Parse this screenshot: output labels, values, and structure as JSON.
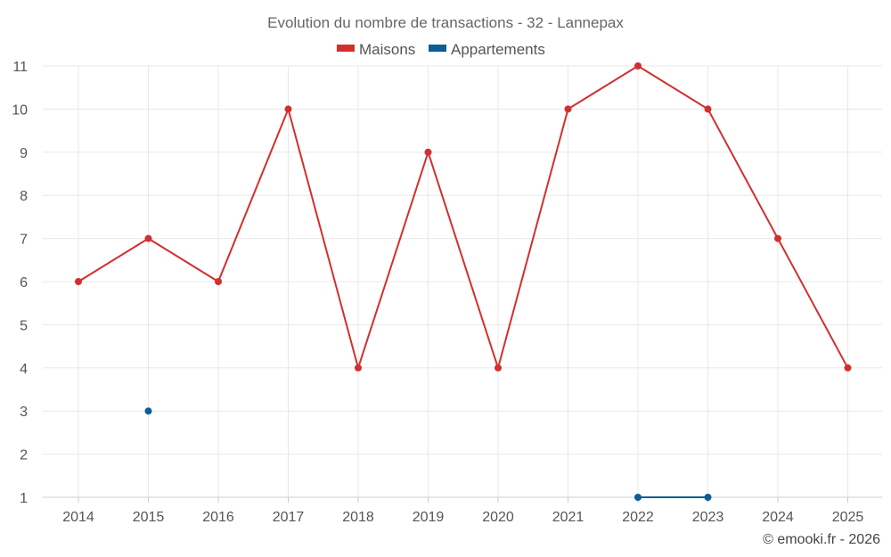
{
  "chart_data": {
    "type": "line",
    "title": "Evolution du nombre de transactions - 32 - Lannepax",
    "categories": [
      "2014",
      "2015",
      "2016",
      "2017",
      "2018",
      "2019",
      "2020",
      "2021",
      "2022",
      "2023",
      "2024",
      "2025"
    ],
    "series": [
      {
        "name": "Maisons",
        "color": "#d32f2f",
        "values": [
          6,
          7,
          6,
          10,
          4,
          9,
          4,
          10,
          11,
          10,
          7,
          4
        ]
      },
      {
        "name": "Appartements",
        "color": "#0b5d95",
        "values": [
          null,
          3,
          null,
          null,
          null,
          null,
          null,
          null,
          1,
          1,
          null,
          null
        ]
      }
    ],
    "ylim": [
      1,
      11
    ],
    "yticks": [
      1,
      2,
      3,
      4,
      5,
      6,
      7,
      8,
      9,
      10,
      11
    ],
    "grid": true,
    "legend_position": "top-center",
    "credit": "© emooki.fr - 2026"
  }
}
